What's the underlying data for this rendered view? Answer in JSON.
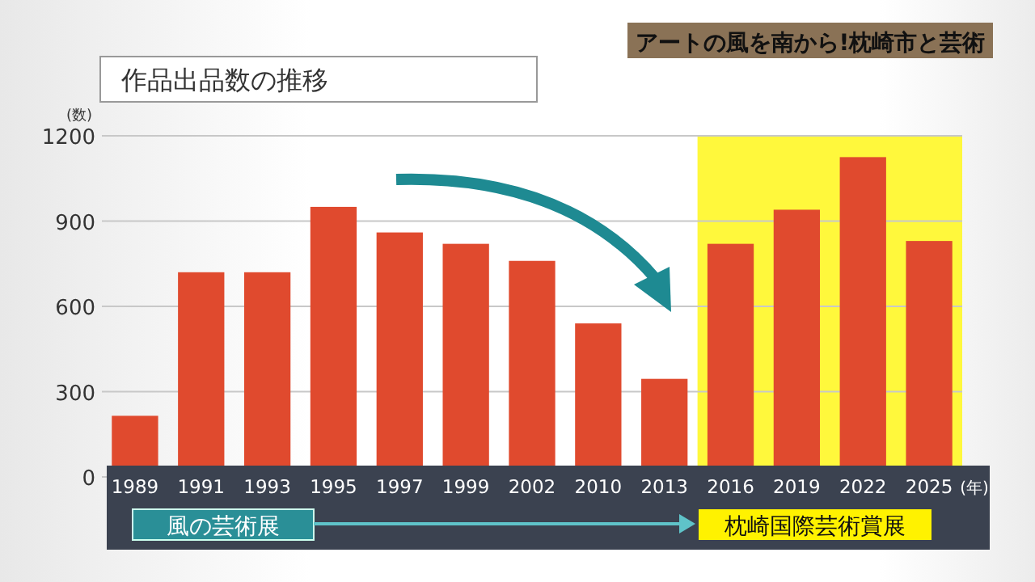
{
  "chart_data": {
    "type": "bar",
    "title": "作品出品数の推移",
    "subtitle": "アートの風を南から!枕崎市と芸術",
    "ylabel": "(数)",
    "xlabel": "(年)",
    "categories": [
      "1989",
      "1991",
      "1993",
      "1995",
      "1997",
      "1999",
      "2002",
      "2010",
      "2013",
      "2016",
      "2019",
      "2022",
      "2025"
    ],
    "values": [
      215,
      720,
      720,
      950,
      860,
      820,
      760,
      540,
      345,
      820,
      940,
      1125,
      830
    ],
    "color": "#e04a2e",
    "ylim": [
      0,
      1200
    ],
    "yticks": [
      0,
      300,
      600,
      900,
      1200
    ],
    "grid": "y",
    "bands": [
      {
        "axis": "x",
        "from": "2016",
        "to": "2025",
        "color": "#fff83c"
      }
    ],
    "annotations": [
      "風の芸術展",
      "枕崎国際芸術賞展"
    ]
  }
}
